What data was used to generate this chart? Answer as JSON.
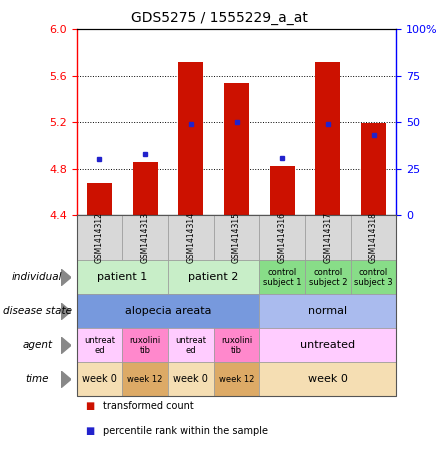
{
  "title": "GDS5275 / 1555229_a_at",
  "samples": [
    "GSM1414312",
    "GSM1414313",
    "GSM1414314",
    "GSM1414315",
    "GSM1414316",
    "GSM1414317",
    "GSM1414318"
  ],
  "transformed_count": [
    4.68,
    4.86,
    5.72,
    5.54,
    4.82,
    5.72,
    5.19
  ],
  "percentile_rank": [
    30,
    33,
    49,
    50,
    31,
    49,
    43
  ],
  "ylim_left": [
    4.4,
    6.0
  ],
  "ylim_right": [
    0,
    100
  ],
  "yticks_left": [
    4.4,
    4.8,
    5.2,
    5.6,
    6.0
  ],
  "yticks_right": [
    0,
    25,
    50,
    75,
    100
  ],
  "bar_color": "#cc1100",
  "dot_color": "#2222cc",
  "bar_width": 0.55,
  "row_labels": [
    "individual",
    "disease state",
    "agent",
    "time"
  ],
  "individual_data": [
    {
      "label": "patient 1",
      "span": [
        0,
        2
      ],
      "color": "#c8eec8",
      "fontsize": 8
    },
    {
      "label": "patient 2",
      "span": [
        2,
        4
      ],
      "color": "#c8eec8",
      "fontsize": 8
    },
    {
      "label": "control\nsubject 1",
      "span": [
        4,
        5
      ],
      "color": "#88dd88",
      "fontsize": 6
    },
    {
      "label": "control\nsubject 2",
      "span": [
        5,
        6
      ],
      "color": "#88dd88",
      "fontsize": 6
    },
    {
      "label": "control\nsubject 3",
      "span": [
        6,
        7
      ],
      "color": "#88dd88",
      "fontsize": 6
    }
  ],
  "disease_data": [
    {
      "label": "alopecia areata",
      "span": [
        0,
        4
      ],
      "color": "#7799dd",
      "fontsize": 8
    },
    {
      "label": "normal",
      "span": [
        4,
        7
      ],
      "color": "#aabbee",
      "fontsize": 8
    }
  ],
  "agent_data": [
    {
      "label": "untreat\ned",
      "span": [
        0,
        1
      ],
      "color": "#ffccff",
      "fontsize": 6
    },
    {
      "label": "ruxolini\ntib",
      "span": [
        1,
        2
      ],
      "color": "#ff88cc",
      "fontsize": 6
    },
    {
      "label": "untreat\ned",
      "span": [
        2,
        3
      ],
      "color": "#ffccff",
      "fontsize": 6
    },
    {
      "label": "ruxolini\ntib",
      "span": [
        3,
        4
      ],
      "color": "#ff88cc",
      "fontsize": 6
    },
    {
      "label": "untreated",
      "span": [
        4,
        7
      ],
      "color": "#ffccff",
      "fontsize": 8
    }
  ],
  "time_data": [
    {
      "label": "week 0",
      "span": [
        0,
        1
      ],
      "color": "#f5deb3",
      "fontsize": 7
    },
    {
      "label": "week 12",
      "span": [
        1,
        2
      ],
      "color": "#ddaa66",
      "fontsize": 6
    },
    {
      "label": "week 0",
      "span": [
        2,
        3
      ],
      "color": "#f5deb3",
      "fontsize": 7
    },
    {
      "label": "week 12",
      "span": [
        3,
        4
      ],
      "color": "#ddaa66",
      "fontsize": 6
    },
    {
      "label": "week 0",
      "span": [
        4,
        7
      ],
      "color": "#f5deb3",
      "fontsize": 8
    }
  ],
  "fig_width": 4.38,
  "fig_height": 4.53,
  "dpi": 100
}
